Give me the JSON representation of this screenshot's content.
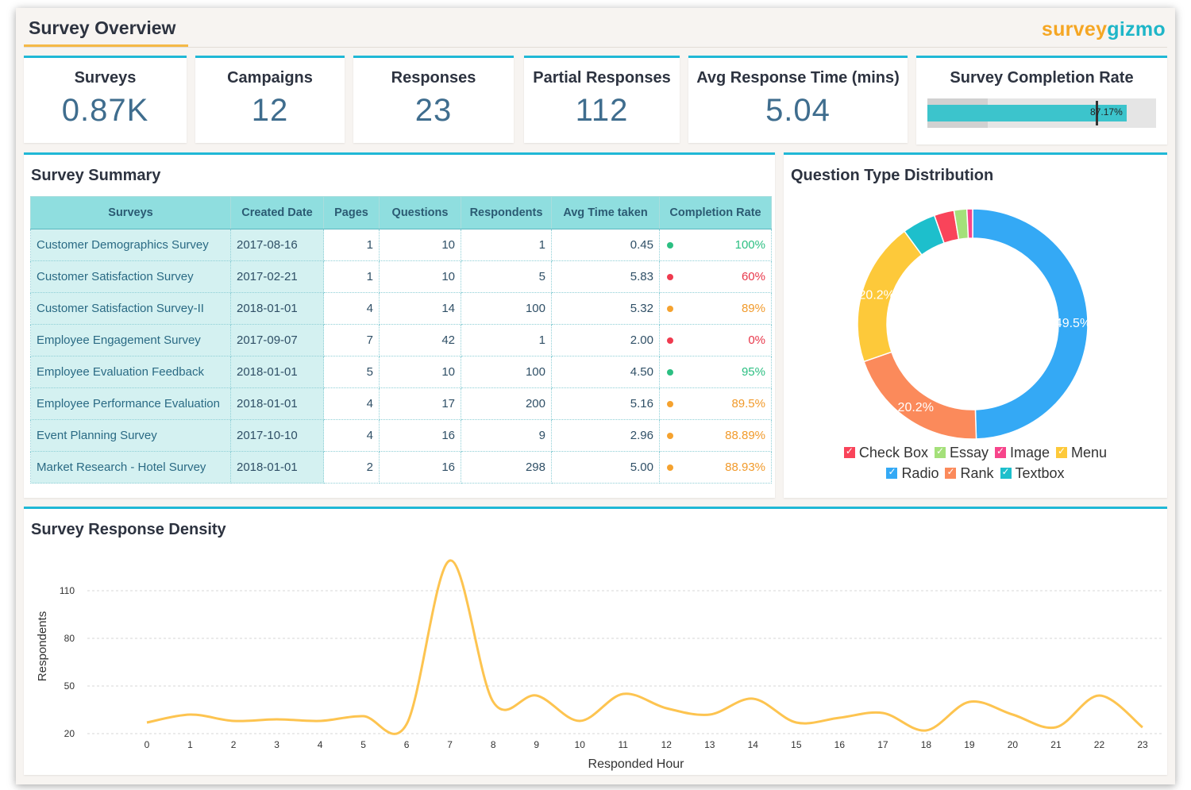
{
  "header": {
    "title": "Survey Overview",
    "logo_part1": "survey",
    "logo_part2": "gizmo"
  },
  "kpis": [
    {
      "label": "Surveys",
      "value": "0.87K"
    },
    {
      "label": "Campaigns",
      "value": "12"
    },
    {
      "label": "Responses",
      "value": "23"
    },
    {
      "label": "Partial Responses",
      "value": "112"
    },
    {
      "label": "Avg Response Time (mins)",
      "value": "5.04"
    }
  ],
  "completion": {
    "label": "Survey Completion Rate",
    "value_percent": 87.17,
    "target_percent": 73.5,
    "band_percent": 26.5,
    "display": "87.17%"
  },
  "summary": {
    "title": "Survey Summary",
    "columns": [
      "Surveys",
      "Created Date",
      "Pages",
      "Questions",
      "Respondents",
      "Avg Time taken",
      "Completion Rate"
    ],
    "rows": [
      {
        "name": "Customer Demographics Survey",
        "date": "2017-08-16",
        "pages": "1",
        "questions": "10",
        "respondents": "1",
        "avg_time": "0.45",
        "rate": "100%",
        "status": "good"
      },
      {
        "name": "Customer Satisfaction Survey",
        "date": "2017-02-21",
        "pages": "1",
        "questions": "10",
        "respondents": "5",
        "avg_time": "5.83",
        "rate": "60%",
        "status": "bad"
      },
      {
        "name": "Customer Satisfaction Survey-II",
        "date": "2018-01-01",
        "pages": "4",
        "questions": "14",
        "respondents": "100",
        "avg_time": "5.32",
        "rate": "89%",
        "status": "mid"
      },
      {
        "name": "Employee Engagement Survey",
        "date": "2017-09-07",
        "pages": "7",
        "questions": "42",
        "respondents": "1",
        "avg_time": "2.00",
        "rate": "0%",
        "status": "bad"
      },
      {
        "name": "Employee Evaluation Feedback",
        "date": "2018-01-01",
        "pages": "5",
        "questions": "10",
        "respondents": "100",
        "avg_time": "4.50",
        "rate": "95%",
        "status": "good"
      },
      {
        "name": "Employee Performance Evaluation",
        "date": "2018-01-01",
        "pages": "4",
        "questions": "17",
        "respondents": "200",
        "avg_time": "5.16",
        "rate": "89.5%",
        "status": "mid"
      },
      {
        "name": "Event Planning Survey",
        "date": "2017-10-10",
        "pages": "4",
        "questions": "16",
        "respondents": "9",
        "avg_time": "2.96",
        "rate": "88.89%",
        "status": "mid"
      },
      {
        "name": "Market Research - Hotel Survey",
        "date": "2018-01-01",
        "pages": "2",
        "questions": "16",
        "respondents": "298",
        "avg_time": "5.00",
        "rate": "88.93%",
        "status": "mid"
      }
    ]
  },
  "colors": {
    "good": "#2cbf82",
    "bad": "#ef3b4f",
    "mid": "#f5a22f",
    "good_text": "#2cbf82",
    "bad_text": "#e8374a",
    "mid_text": "#f19a2b",
    "accent": "#20b8d6"
  },
  "chart_data": [
    {
      "type": "pie",
      "title": "Question Type Distribution",
      "slices": [
        {
          "label": "Radio",
          "value": 49.5,
          "color": "#34a9f5",
          "show_label": "49.5%"
        },
        {
          "label": "Rank",
          "value": 20.2,
          "color": "#fb8a5b",
          "show_label": "20.2%"
        },
        {
          "label": "Menu",
          "value": 20.2,
          "color": "#fdc93a",
          "show_label": "20.2%"
        },
        {
          "label": "Textbox",
          "value": 4.7,
          "color": "#1dbfcc",
          "show_label": ""
        },
        {
          "label": "Check Box",
          "value": 2.8,
          "color": "#f9445a",
          "show_label": ""
        },
        {
          "label": "Essay",
          "value": 1.8,
          "color": "#a4e07a",
          "show_label": ""
        },
        {
          "label": "Image",
          "value": 0.8,
          "color": "#f7458b",
          "show_label": ""
        }
      ],
      "legend_rows": [
        [
          {
            "label": "Check Box",
            "color": "#f9445a"
          },
          {
            "label": "Essay",
            "color": "#a4e07a"
          },
          {
            "label": "Image",
            "color": "#f7458b"
          },
          {
            "label": "Menu",
            "color": "#fdc93a"
          }
        ],
        [
          {
            "label": "Radio",
            "color": "#34a9f5"
          },
          {
            "label": "Rank",
            "color": "#fb8a5b"
          },
          {
            "label": "Textbox",
            "color": "#1dbfcc"
          }
        ]
      ]
    },
    {
      "type": "line",
      "title": "Survey Response Density",
      "xlabel": "Responded Hour",
      "ylabel": "Respondents",
      "x": [
        0,
        1,
        2,
        3,
        4,
        5,
        6,
        7,
        8,
        9,
        10,
        11,
        12,
        13,
        14,
        15,
        16,
        17,
        18,
        19,
        20,
        21,
        22,
        23
      ],
      "values": [
        27,
        32,
        28,
        29,
        28,
        31,
        26,
        129,
        40,
        44,
        28,
        45,
        36,
        32,
        42,
        27,
        30,
        33,
        22,
        40,
        32,
        24,
        44,
        24
      ],
      "yticks": [
        20,
        50,
        80,
        110
      ],
      "ylim": [
        15,
        135
      ],
      "line_color": "#fdc450"
    }
  ]
}
